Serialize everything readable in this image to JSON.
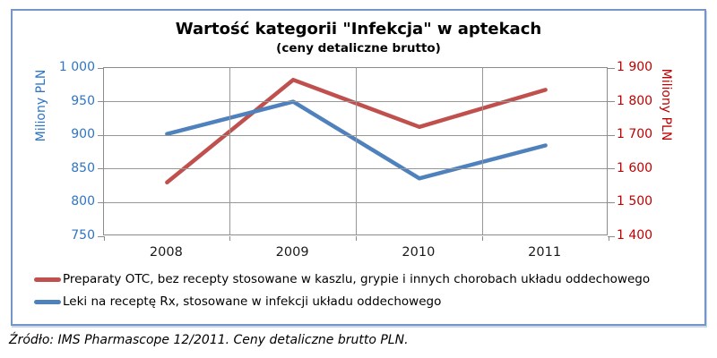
{
  "source_note": "Źródło: IMS Pharmascope 12/2011. Ceny detaliczne brutto PLN.",
  "frame": {
    "border_color": "#7496C8"
  },
  "chart_data": {
    "type": "line",
    "title": "Wartość kategorii \"Infekcja\" w aptekach",
    "subtitle": "(ceny detaliczne brutto)",
    "categories": [
      "2008",
      "2009",
      "2010",
      "2011"
    ],
    "series": [
      {
        "name": "Preparaty OTC, bez recepty stosowane w kaszlu, grypie i innych chorobach układu oddechowego",
        "axis": "right",
        "color": "#C0504D",
        "values": [
          1560,
          1865,
          1725,
          1835
        ]
      },
      {
        "name": "Leki na receptę Rx, stosowane w infekcji układu oddechowego",
        "axis": "left",
        "color": "#4F81BD",
        "values": [
          902,
          950,
          836,
          885
        ]
      }
    ],
    "left_axis": {
      "label": "Miliony PLN",
      "color": "#2E75C6",
      "min": 750,
      "max": 1000,
      "step": 50,
      "ticks": [
        "1 000",
        "950",
        "900",
        "850",
        "800",
        "750"
      ]
    },
    "right_axis": {
      "label": "Miliony PLN",
      "color": "#C00000",
      "min": 1400,
      "max": 1900,
      "step": 100,
      "ticks": [
        "1 900",
        "1 800",
        "1 700",
        "1 600",
        "1 500",
        "1 400"
      ]
    },
    "grid": true,
    "legend_position": "bottom"
  }
}
